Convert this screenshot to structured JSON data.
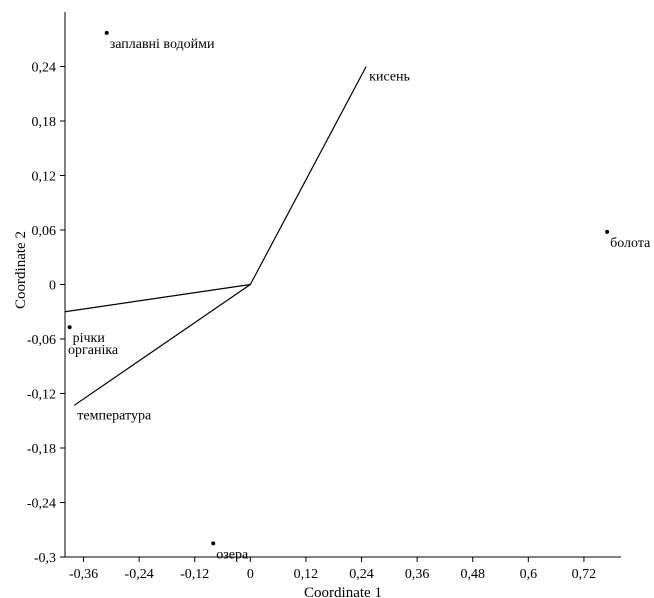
{
  "chart_data": {
    "type": "scatter",
    "title": "",
    "xlabel": "Coordinate 1",
    "ylabel": "Coordinate 2",
    "xlim": [
      -0.4,
      0.8
    ],
    "ylim": [
      -0.3,
      0.3
    ],
    "x_ticks": [
      -0.36,
      -0.24,
      -0.12,
      0,
      0.12,
      0.24,
      0.36,
      0.48,
      0.6,
      0.72
    ],
    "x_tick_labels": [
      "-0,36",
      "-0,24",
      "-0,12",
      "0",
      "0,12",
      "0,24",
      "0,36",
      "0,48",
      "0,6",
      "0,72"
    ],
    "y_ticks": [
      -0.3,
      -0.24,
      -0.18,
      -0.12,
      -0.06,
      0,
      0.06,
      0.12,
      0.18,
      0.24
    ],
    "y_tick_labels": [
      "-0,3",
      "-0,24",
      "-0,18",
      "-0,12",
      "-0,06",
      "0",
      "0,06",
      "0,12",
      "0,18",
      "0,24"
    ],
    "grid": false,
    "points": [
      {
        "label": "заплавні водойми",
        "x": -0.31,
        "y": 0.277
      },
      {
        "label": "болота",
        "x": 0.77,
        "y": 0.058
      },
      {
        "label": "річки",
        "x": -0.39,
        "y": -0.047
      },
      {
        "label": "озера",
        "x": -0.08,
        "y": -0.285
      }
    ],
    "vectors": [
      {
        "label": "кисень",
        "x": 0.25,
        "y": 0.24
      },
      {
        "label": "органіка",
        "x": -0.4,
        "y": -0.03
      },
      {
        "label": "температура",
        "x": -0.38,
        "y": -0.133
      }
    ]
  }
}
